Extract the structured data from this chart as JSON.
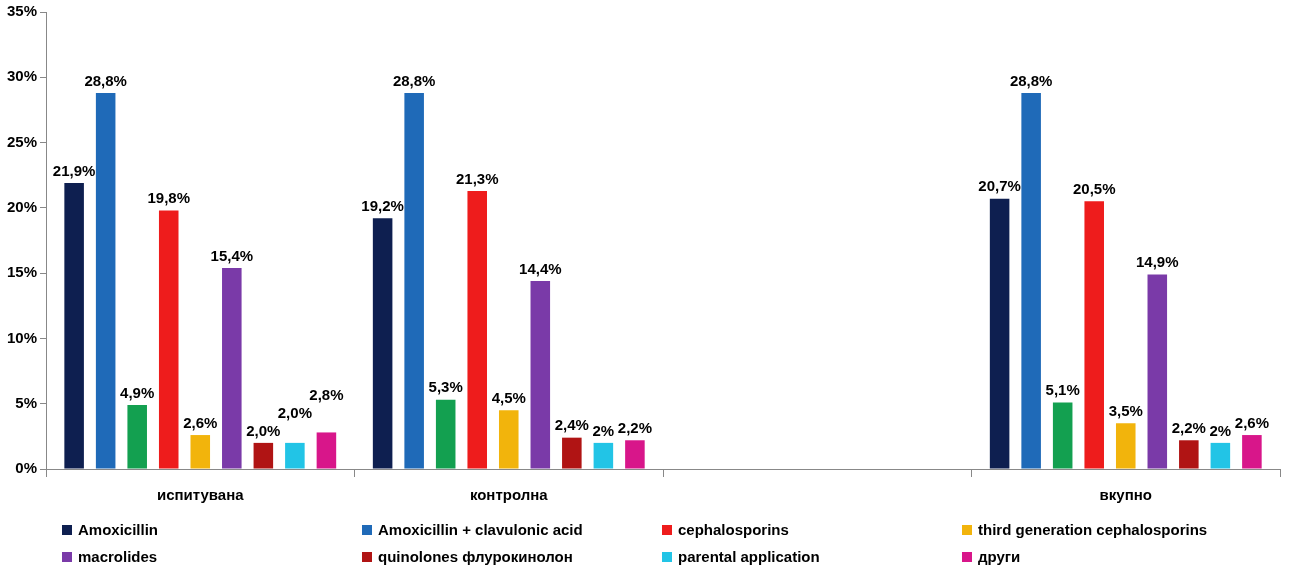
{
  "chart_data": {
    "type": "bar",
    "categories": [
      "испитувана",
      "контролна",
      null,
      "вкупно"
    ],
    "series": [
      {
        "name": "Amoxicillin",
        "color": "#0e1f50",
        "values": [
          21.9,
          19.2,
          null,
          20.7
        ],
        "value_labels": [
          "21,9%",
          "19,2%",
          null,
          "20,7%"
        ]
      },
      {
        "name": "Amoxicillin +  clavulonic acid",
        "color": "#1f6ab8",
        "values": [
          28.8,
          28.8,
          null,
          28.8
        ],
        "value_labels": [
          "28,8%",
          "28,8%",
          null,
          "28,8%"
        ]
      },
      {
        "color": "#13a050",
        "values": [
          4.9,
          5.3,
          null,
          5.1
        ],
        "value_labels": [
          "4,9%",
          "5,3%",
          null,
          "5,1%"
        ]
      },
      {
        "name": "cephalosporins",
        "color": "#ee1c1c",
        "values": [
          19.8,
          21.3,
          null,
          20.5
        ],
        "value_labels": [
          "19,8%",
          "21,3%",
          null,
          "20,5%"
        ]
      },
      {
        "name": "third generation  cephalosporins",
        "color": "#f2b40c",
        "values": [
          2.6,
          4.5,
          null,
          3.5
        ],
        "value_labels": [
          "2,6%",
          "4,5%",
          null,
          "3,5%"
        ]
      },
      {
        "name": "macrolides",
        "color": "#7a3aa8",
        "values": [
          15.4,
          14.4,
          null,
          14.9
        ],
        "value_labels": [
          "15,4%",
          "14,4%",
          null,
          "14,9%"
        ]
      },
      {
        "name": "quinolones флурокинолон",
        "color": "#b01414",
        "values": [
          2.0,
          2.4,
          null,
          2.2
        ],
        "value_labels": [
          "2,0%",
          "2,4%",
          null,
          "2,2%"
        ]
      },
      {
        "name": "parental application",
        "color": "#22c4e6",
        "values": [
          2.0,
          2,
          null,
          2
        ],
        "value_labels": [
          "2,0%",
          "2%",
          null,
          "2%"
        ]
      },
      {
        "name": "други",
        "color": "#d8168a",
        "values": [
          2.8,
          2.2,
          null,
          2.6
        ],
        "value_labels": [
          "2,8%",
          "2,2%",
          null,
          "2,6%"
        ]
      }
    ],
    "ylim": [
      0,
      35
    ],
    "yticks": [
      {
        "value": 0,
        "label": "0%"
      },
      {
        "value": 5,
        "label": "5%"
      },
      {
        "value": 10,
        "label": "10%"
      },
      {
        "value": 15,
        "label": "15%"
      },
      {
        "value": 20,
        "label": "20%"
      },
      {
        "value": 25,
        "label": "25%"
      },
      {
        "value": 30,
        "label": "30%"
      },
      {
        "value": 35,
        "label": "35%"
      }
    ],
    "grid": false,
    "legend": "bottom"
  }
}
